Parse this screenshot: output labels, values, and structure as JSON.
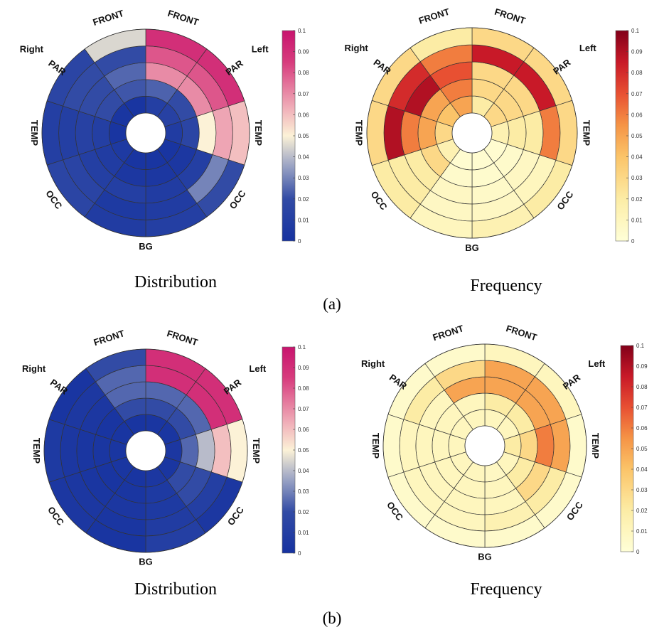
{
  "chart_data": [
    {
      "type": "polar-heatmap",
      "panel": "a-distribution",
      "colormap": "blue-white-magenta",
      "vmin": 0,
      "vmax": 0.1,
      "sector_labels": [
        "Right",
        "FRONT",
        "FRONT",
        "Left",
        "PAR",
        "TEMP",
        "OCC",
        "BG",
        "OCC",
        "TEMP",
        "PAR"
      ],
      "values": [
        [
          0.01,
          0.012,
          0.008,
          0.002,
          0.002,
          0.002,
          0.006,
          0.002,
          0.003,
          0.002
        ],
        [
          0.024,
          0.02,
          0.015,
          0.004,
          0.004,
          0.004,
          0.008,
          0.01,
          0.02,
          0.022
        ],
        [
          0.07,
          0.07,
          0.05,
          0.01,
          0.008,
          0.01,
          0.01,
          0.012,
          0.02,
          0.025
        ],
        [
          0.08,
          0.08,
          0.065,
          0.03,
          0.008,
          0.006,
          0.014,
          0.01,
          0.02,
          0.02
        ],
        [
          0.09,
          0.09,
          0.06,
          0.02,
          0.01,
          0.008,
          0.015,
          0.01,
          0.015,
          0.045
        ]
      ],
      "colorbar_ticks": [
        "0",
        "0.01",
        "0.02",
        "0.03",
        "0.04",
        "0.05",
        "0.06",
        "0.07",
        "0.08",
        "0.09",
        "0.1"
      ],
      "caption": "Distribution"
    },
    {
      "type": "polar-heatmap",
      "panel": "a-frequency",
      "colormap": "yellow-orange-red",
      "vmin": 0,
      "vmax": 0.1,
      "sector_labels": [
        "Right",
        "FRONT",
        "FRONT",
        "Left",
        "PAR",
        "TEMP",
        "OCC",
        "BG",
        "OCC",
        "TEMP",
        "PAR"
      ],
      "values": [
        [
          0.02,
          0.03,
          0.015,
          0.003,
          0.003,
          0.003,
          0.015,
          0.03,
          0.04,
          0.05
        ],
        [
          0.03,
          0.03,
          0.02,
          0.005,
          0.004,
          0.005,
          0.03,
          0.05,
          0.05,
          0.06
        ],
        [
          0.03,
          0.03,
          0.02,
          0.008,
          0.006,
          0.008,
          0.02,
          0.06,
          0.09,
          0.07
        ],
        [
          0.085,
          0.085,
          0.06,
          0.01,
          0.008,
          0.008,
          0.02,
          0.09,
          0.08,
          0.06
        ],
        [
          0.03,
          0.03,
          0.03,
          0.02,
          0.015,
          0.01,
          0.02,
          0.03,
          0.03,
          0.02
        ]
      ],
      "colorbar_ticks": [
        "0",
        "0.01",
        "0.02",
        "0.03",
        "0.04",
        "0.05",
        "0.06",
        "0.07",
        "0.08",
        "0.09",
        "0.1"
      ],
      "caption": "Frequency"
    },
    {
      "type": "polar-heatmap",
      "panel": "b-distribution",
      "colormap": "blue-white-magenta",
      "vmin": 0,
      "vmax": 0.1,
      "sector_labels": [
        "Right",
        "FRONT",
        "FRONT",
        "Left",
        "PAR",
        "TEMP",
        "OCC",
        "BG",
        "OCC",
        "TEMP",
        "PAR"
      ],
      "values": [
        [
          0.003,
          0.003,
          0.004,
          0.003,
          0.004,
          0.002,
          0.003,
          0.003,
          0.002,
          0.002
        ],
        [
          0.02,
          0.02,
          0.025,
          0.02,
          0.006,
          0.003,
          0.002,
          0.003,
          0.002,
          0.02
        ],
        [
          0.025,
          0.025,
          0.04,
          0.02,
          0.006,
          0.004,
          0.003,
          0.003,
          0.004,
          0.025
        ],
        [
          0.09,
          0.09,
          0.06,
          0.01,
          0.008,
          0.003,
          0.004,
          0.004,
          0.005,
          0.025
        ],
        [
          0.09,
          0.09,
          0.05,
          0.004,
          0.01,
          0.002,
          0.004,
          0.006,
          0.002,
          0.02
        ]
      ],
      "colorbar_ticks": [
        "0",
        "0.01",
        "0.02",
        "0.03",
        "0.04",
        "0.05",
        "0.06",
        "0.07",
        "0.08",
        "0.09",
        "0.1"
      ],
      "caption": "Distribution"
    },
    {
      "type": "polar-heatmap",
      "panel": "b-frequency",
      "colormap": "yellow-orange-red",
      "vmin": 0,
      "vmax": 0.1,
      "sector_labels": [
        "Right",
        "FRONT",
        "FRONT",
        "Left",
        "PAR",
        "TEMP",
        "OCC",
        "BG",
        "OCC",
        "TEMP",
        "PAR"
      ],
      "values": [
        [
          0.01,
          0.01,
          0.02,
          0.01,
          0.008,
          0.01,
          0.01,
          0.01,
          0.01,
          0.01
        ],
        [
          0.02,
          0.02,
          0.03,
          0.02,
          0.01,
          0.01,
          0.01,
          0.01,
          0.01,
          0.01
        ],
        [
          0.05,
          0.05,
          0.06,
          0.03,
          0.01,
          0.01,
          0.01,
          0.01,
          0.01,
          0.05
        ],
        [
          0.05,
          0.05,
          0.05,
          0.02,
          0.015,
          0.01,
          0.01,
          0.01,
          0.02,
          0.03
        ],
        [
          0.01,
          0.01,
          0.005,
          0.005,
          0.005,
          0.005,
          0.005,
          0.005,
          0.005,
          0.005
        ]
      ],
      "colorbar_ticks": [
        "0",
        "0.01",
        "0.02",
        "0.03",
        "0.04",
        "0.05",
        "0.06",
        "0.07",
        "0.08",
        "0.09",
        "0.1"
      ],
      "caption": "Frequency"
    }
  ],
  "subcaptions": [
    "(a)",
    "(b)"
  ]
}
